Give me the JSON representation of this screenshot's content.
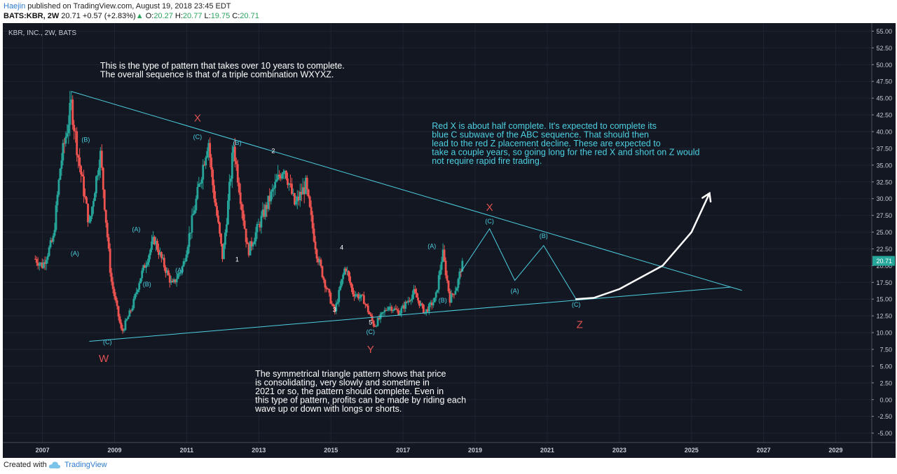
{
  "header": {
    "author": "Haejin",
    "published_text": " published on TradingView.com, August 19, 2018 23:45 EDT",
    "symbol": "BATS:KBR, 2W",
    "last": "20.71",
    "up_arrow": "▲",
    "change": "+0.57 (+2.83%)",
    "open_label": "O:",
    "open": "20.27",
    "high_label": "H:",
    "high": "20.77",
    "low_label": "L:",
    "low": "19.75",
    "close_label": "C:",
    "close": "20.71"
  },
  "footer": {
    "created_label": "Created with",
    "brand": "TradingView",
    "icon": "tradingview-cloud-icon"
  },
  "colors": {
    "background": "#131722",
    "up": "#26a69a",
    "down": "#ef5350",
    "annotation": "#4dd0e1",
    "wave_red": "#e05252",
    "text": "#ffffff",
    "price_tag": "#26a69a"
  },
  "chart_data": {
    "type": "candlestick",
    "title": "KBR, INC., 2W, BATS",
    "x_range": [
      2005.9,
      2030.0
    ],
    "y_range": [
      -6.4,
      56.2
    ],
    "x_ticks": [
      "2007",
      "2009",
      "2011",
      "2013",
      "2015",
      "2017",
      "2019",
      "2021",
      "2023",
      "2025",
      "2027",
      "2029"
    ],
    "y_ticks": [
      "55.00",
      "52.50",
      "50.00",
      "47.50",
      "45.00",
      "42.50",
      "40.00",
      "37.50",
      "35.00",
      "32.50",
      "30.00",
      "27.50",
      "25.00",
      "22.50",
      "20.00",
      "17.50",
      "15.00",
      "12.50",
      "10.00",
      "7.50",
      "5.00",
      "2.50",
      "0.00",
      "-2.50",
      "-5.00"
    ],
    "last_price": "20.71",
    "price_anchors": [
      [
        2006.8,
        21
      ],
      [
        2007.0,
        20
      ],
      [
        2007.3,
        24
      ],
      [
        2007.5,
        35
      ],
      [
        2007.8,
        44
      ],
      [
        2008.0,
        36
      ],
      [
        2008.3,
        26
      ],
      [
        2008.6,
        37
      ],
      [
        2008.9,
        18
      ],
      [
        2009.2,
        10
      ],
      [
        2009.5,
        14
      ],
      [
        2009.7,
        18
      ],
      [
        2010.1,
        24
      ],
      [
        2010.3,
        21
      ],
      [
        2010.6,
        17
      ],
      [
        2010.9,
        20
      ],
      [
        2011.2,
        28
      ],
      [
        2011.6,
        39
      ],
      [
        2011.7,
        33
      ],
      [
        2012.0,
        21
      ],
      [
        2012.3,
        38
      ],
      [
        2012.7,
        22
      ],
      [
        2013.0,
        26
      ],
      [
        2013.3,
        30
      ],
      [
        2013.7,
        35
      ],
      [
        2014.0,
        29
      ],
      [
        2014.3,
        32
      ],
      [
        2014.6,
        22
      ],
      [
        2014.8,
        18
      ],
      [
        2015.1,
        13
      ],
      [
        2015.4,
        20
      ],
      [
        2015.6,
        16
      ],
      [
        2015.9,
        15
      ],
      [
        2016.2,
        11
      ],
      [
        2016.6,
        14
      ],
      [
        2016.9,
        13
      ],
      [
        2017.3,
        16
      ],
      [
        2017.6,
        13
      ],
      [
        2017.9,
        15
      ],
      [
        2018.1,
        22
      ],
      [
        2018.3,
        15
      ],
      [
        2018.5,
        17
      ],
      [
        2018.65,
        20.71
      ]
    ],
    "trendlines": [
      {
        "name": "upper-resistance",
        "points": [
          [
            2007.8,
            46.0
          ],
          [
            2026.4,
            16.3
          ]
        ]
      },
      {
        "name": "lower-support",
        "points": [
          [
            2008.3,
            8.7
          ],
          [
            2026.1,
            16.8
          ]
        ]
      }
    ],
    "projection_path": [
      [
        2018.6,
        19
      ],
      [
        2019.4,
        25.5
      ],
      [
        2020.1,
        17.8
      ],
      [
        2020.9,
        23
      ],
      [
        2021.8,
        15
      ]
    ],
    "curved_arrow": [
      [
        2021.8,
        15
      ],
      [
        2022.3,
        15.2
      ],
      [
        2023.0,
        16.5
      ],
      [
        2024.2,
        20
      ],
      [
        2025.0,
        25
      ],
      [
        2025.5,
        30.8
      ]
    ],
    "wave_labels": [
      {
        "text": "X",
        "color": "red",
        "x": 2011.3,
        "y": 41.5,
        "size": 15
      },
      {
        "text": "(C)",
        "color": "cyan",
        "x": 2011.3,
        "y": 38.9,
        "size": 9
      },
      {
        "text": "(B)",
        "color": "cyan",
        "x": 2008.2,
        "y": 38.5,
        "size": 9
      },
      {
        "text": "(A)",
        "color": "cyan",
        "x": 2007.9,
        "y": 21.5,
        "size": 9
      },
      {
        "text": "(C)",
        "color": "cyan",
        "x": 2008.8,
        "y": 8.3,
        "size": 9
      },
      {
        "text": "W",
        "color": "red",
        "x": 2008.7,
        "y": 5.6,
        "size": 15
      },
      {
        "text": "(A)",
        "color": "cyan",
        "x": 2009.6,
        "y": 25.1,
        "size": 9
      },
      {
        "text": "(B)",
        "color": "cyan",
        "x": 2009.9,
        "y": 16.9,
        "size": 9
      },
      {
        "text": "(A)",
        "color": "cyan",
        "x": 2010.8,
        "y": 19.0,
        "size": 9
      },
      {
        "text": "(B)",
        "color": "cyan",
        "x": 2012.4,
        "y": 38.0,
        "size": 9
      },
      {
        "text": "1",
        "color": "white",
        "x": 2012.4,
        "y": 20.6,
        "size": 9
      },
      {
        "text": "2",
        "color": "white",
        "x": 2013.4,
        "y": 36.8,
        "size": 9
      },
      {
        "text": "3",
        "color": "white",
        "x": 2015.1,
        "y": 13.1,
        "size": 9
      },
      {
        "text": "4",
        "color": "white",
        "x": 2015.3,
        "y": 22.4,
        "size": 9
      },
      {
        "text": "5",
        "color": "white",
        "x": 2016.1,
        "y": 11.2,
        "size": 9
      },
      {
        "text": "(C)",
        "color": "cyan",
        "x": 2016.1,
        "y": 9.8,
        "size": 9
      },
      {
        "text": "Y",
        "color": "red",
        "x": 2016.1,
        "y": 7.0,
        "size": 15
      },
      {
        "text": "(A)",
        "color": "cyan",
        "x": 2017.8,
        "y": 22.6,
        "size": 9
      },
      {
        "text": "(B)",
        "color": "cyan",
        "x": 2018.1,
        "y": 14.5,
        "size": 9
      },
      {
        "text": "X",
        "color": "red",
        "x": 2019.4,
        "y": 28.2,
        "size": 15
      },
      {
        "text": "(C)",
        "color": "cyan",
        "x": 2019.4,
        "y": 26.3,
        "size": 9
      },
      {
        "text": "(A)",
        "color": "cyan",
        "x": 2020.1,
        "y": 15.9,
        "size": 9
      },
      {
        "text": "(B)",
        "color": "cyan",
        "x": 2020.9,
        "y": 24.1,
        "size": 9
      },
      {
        "text": "(C)",
        "color": "cyan",
        "x": 2021.8,
        "y": 13.9,
        "size": 9
      },
      {
        "text": "Z",
        "color": "red",
        "x": 2021.9,
        "y": 10.7,
        "size": 15
      }
    ],
    "notes": [
      {
        "lines": [
          "This is the type of pattern that takes over 10 years to complete.",
          "The overall sequence  is that of a triple combination WXYXZ."
        ],
        "color": "white",
        "x": 2008.6,
        "y": 49.4
      },
      {
        "lines": [
          "Red X is about half complete. It's expected to complete its",
          "blue C subwave of the ABC sequence. That should then",
          "lead to the red Z placement decline. These are expected to",
          "take a couple years, so going long for the red X and short on Z would",
          "not require rapid fire trading."
        ],
        "color": "cyan",
        "x": 2017.8,
        "y": 40.4
      },
      {
        "lines": [
          "The symmetrical triangle pattern shows that price",
          "is consolidating, very slowly and sometime in",
          "2021 or so, the pattern should complete. Even in",
          "this type of pattern, profits can be made by riding each",
          "wave up or down with longs or shorts."
        ],
        "color": "white",
        "x": 2012.9,
        "y": 3.4
      }
    ]
  }
}
